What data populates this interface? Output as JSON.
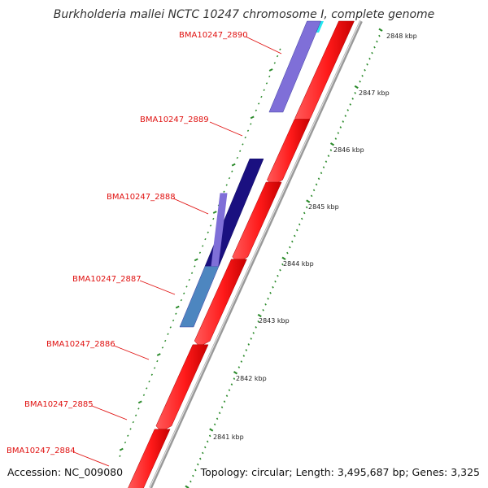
{
  "title": "Burkholderia mallei NCTC 10247 chromosome I, complete genome",
  "footer": {
    "accession_label": "Accession:",
    "accession_value": "NC_009080",
    "summary": "Topology: circular; Length: 3,495,687 bp; Genes: 3,325"
  },
  "colors": {
    "forward_cds": "#ff2020",
    "backbone": "#999999",
    "gene_label": "#e0100f",
    "tick_mark": "#2a8a2a",
    "reverse_cds_light": "#7f6fd8",
    "reverse_cds_dark": "#1a1080",
    "reverse_cds_steel": "#4d86c0",
    "feature_cyan": "#27e8f0"
  },
  "scale_labels": [
    "2848 kbp",
    "2847 kbp",
    "2846 kbp",
    "2845 kbp",
    "2844 kbp",
    "2843 kbp",
    "2842 kbp",
    "2841 kbp"
  ],
  "genes": [
    {
      "name": "BMA10247_2890",
      "strand": "reverse",
      "color": "light"
    },
    {
      "name": "BMA10247_2889",
      "strand": "forward",
      "color": "red"
    },
    {
      "name": "BMA10247_2888",
      "strand": "reverse",
      "color": "dark"
    },
    {
      "name": "BMA10247_2887",
      "strand": "reverse",
      "color": "steel"
    },
    {
      "name": "BMA10247_2886",
      "strand": "forward",
      "color": "red"
    },
    {
      "name": "BMA10247_2885",
      "strand": "forward",
      "color": "red"
    },
    {
      "name": "BMA10247_2884",
      "strand": "forward",
      "color": "red"
    }
  ]
}
